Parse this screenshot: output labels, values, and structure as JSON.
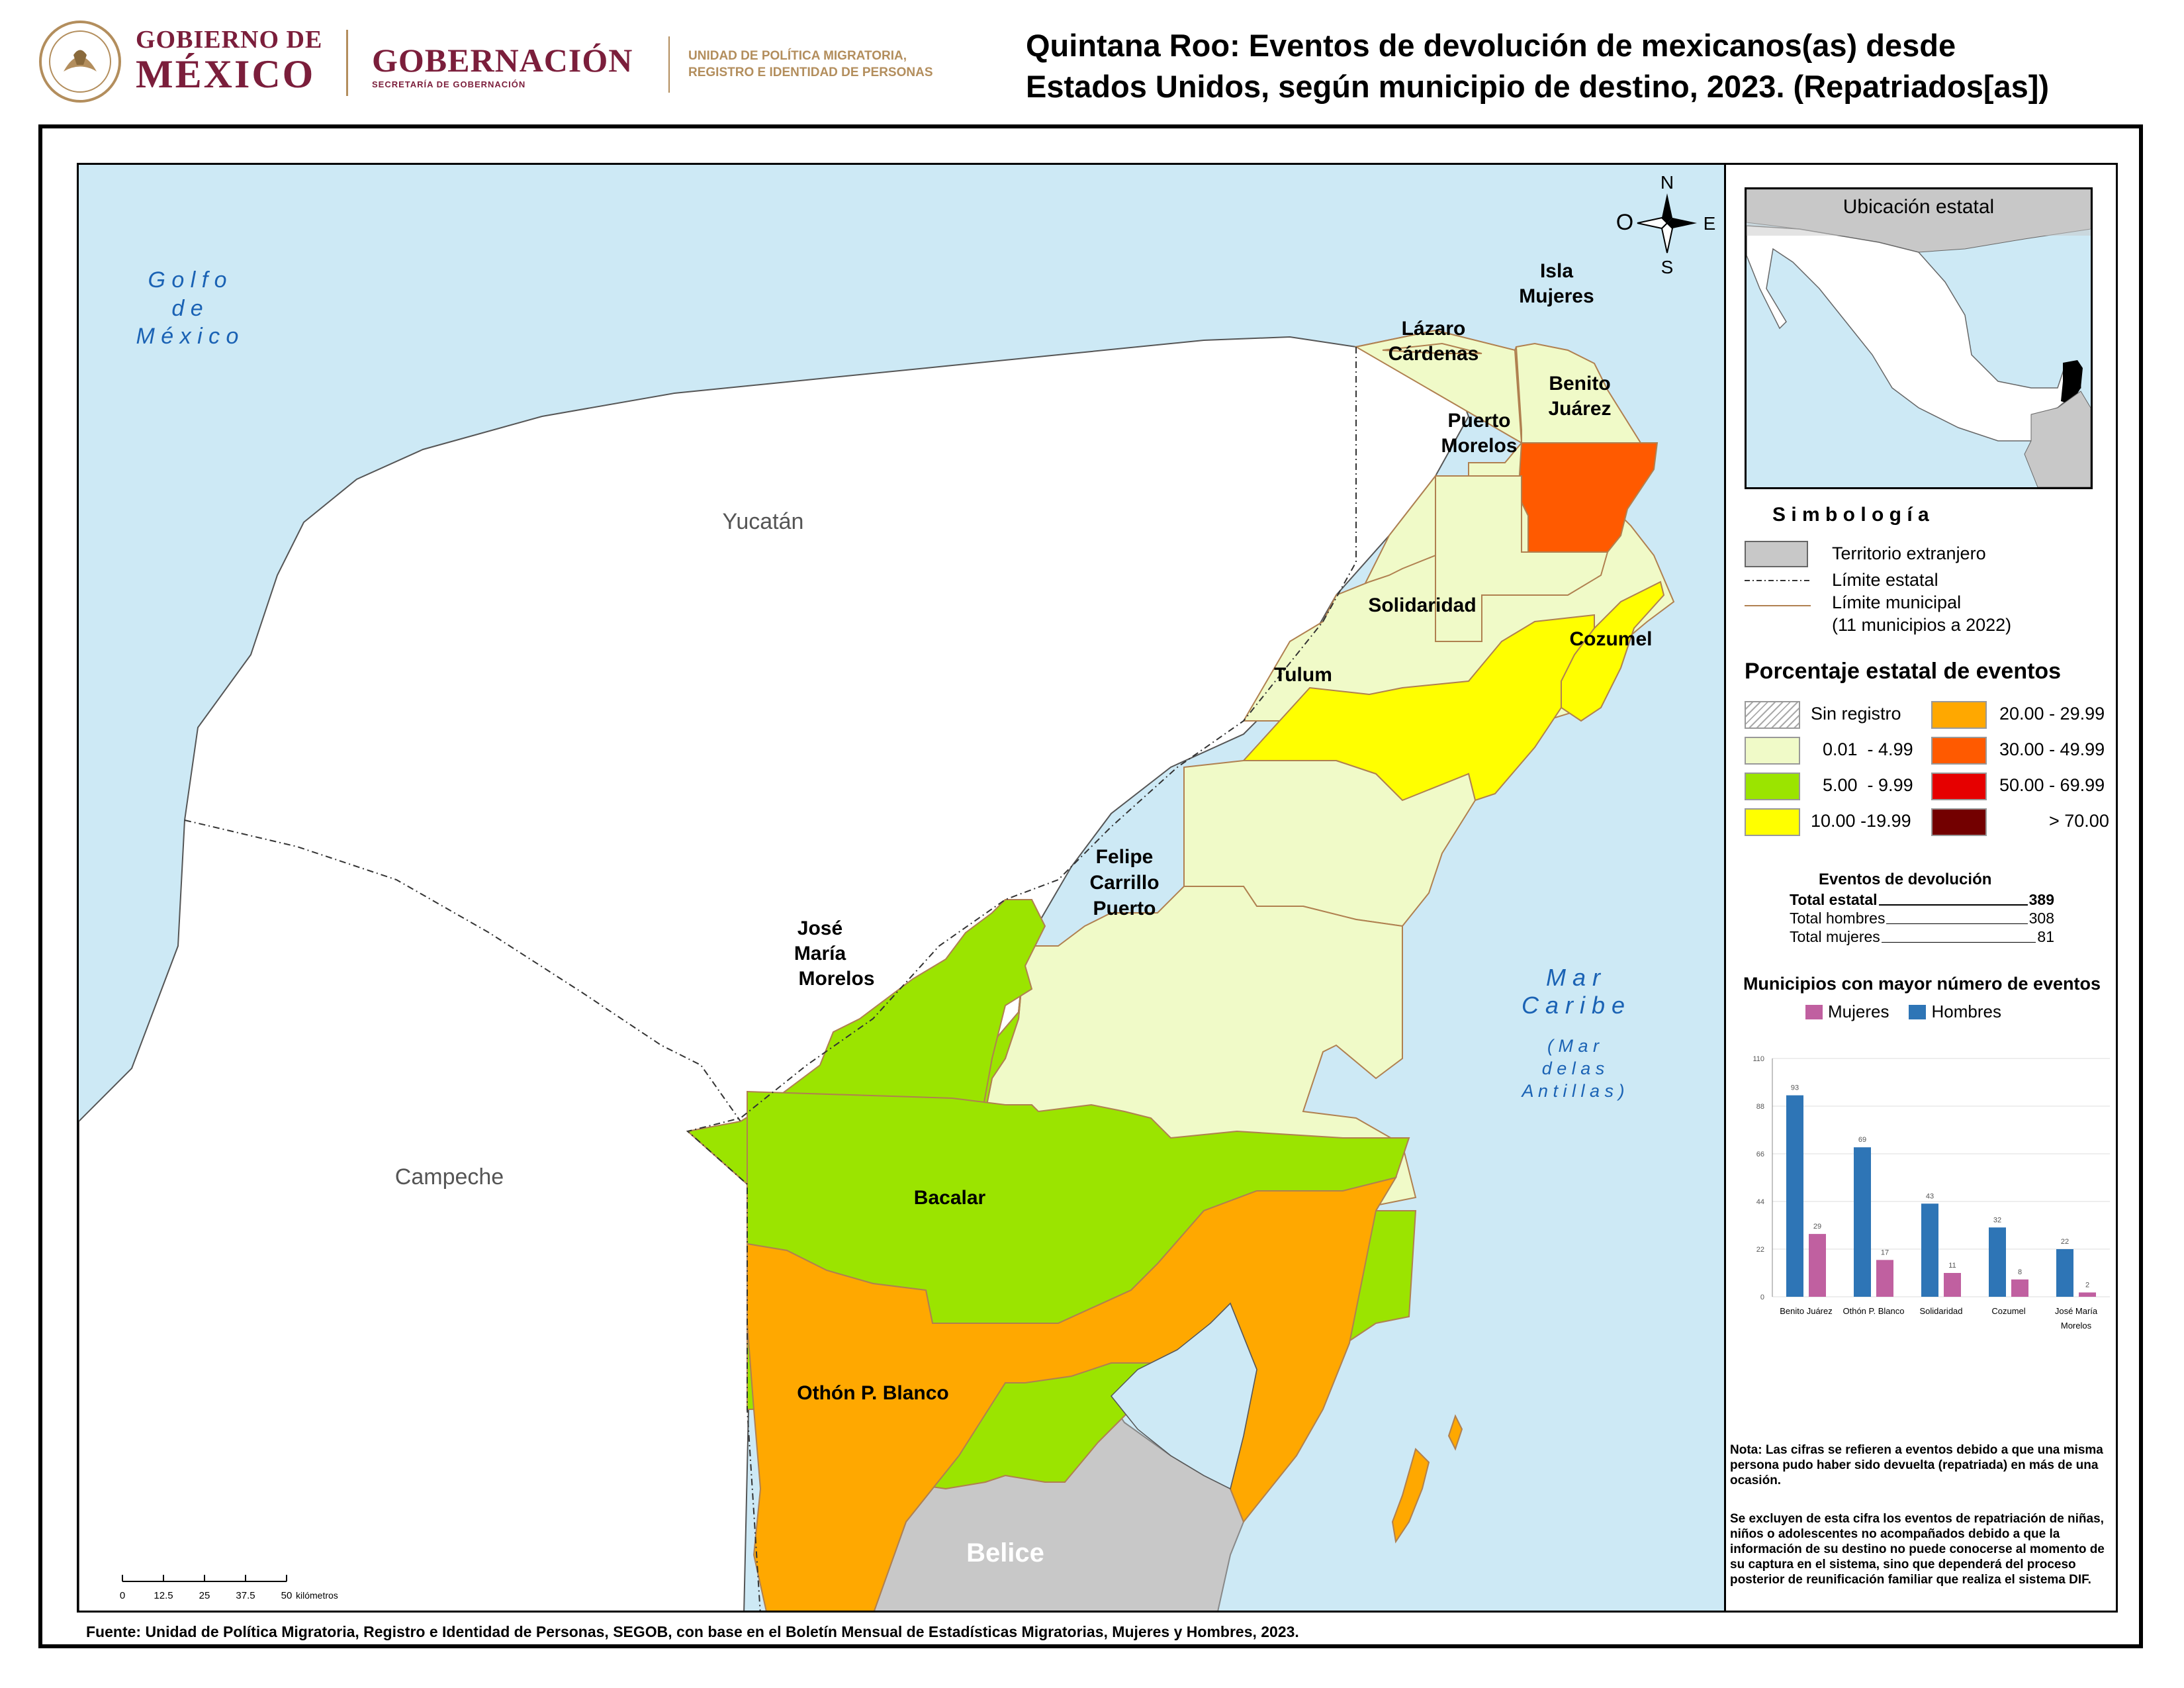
{
  "header": {
    "logo_gobierno_line1": "GOBIERNO DE",
    "logo_gobierno_line2": "MÉXICO",
    "logo_gobernacion": "GOBERNACIÓN",
    "logo_gobernacion_sub": "SECRETARÍA DE GOBERNACIÓN",
    "logo_unidad_line1": "UNIDAD DE POLÍTICA MIGRATORIA,",
    "logo_unidad_line2": "REGISTRO E IDENTIDAD DE PERSONAS",
    "title_line1": "Quintana Roo: Eventos de devolución de mexicanos(as) desde",
    "title_line2": "Estados Unidos, según municipio de destino, 2023. (Repatriados[as])"
  },
  "map": {
    "compass": {
      "n": "N",
      "s": "S",
      "e": "E",
      "w": "O"
    },
    "sea_golfo": [
      "G o l f o",
      "d e",
      "M é x i c o"
    ],
    "sea_caribe": [
      "M a r",
      "C a r i b e"
    ],
    "sea_antillas": [
      "( M a r",
      "d e   l a s",
      "A n t i l l a s )"
    ],
    "states": {
      "yucatan": "Yucatán",
      "campeche": "Campeche",
      "belice": "Belice"
    },
    "municipios": {
      "isla_mujeres": [
        "Isla",
        "Mujeres"
      ],
      "lazaro_cardenas": [
        "Lázaro",
        "Cárdenas"
      ],
      "benito_juarez": [
        "Benito",
        "Juárez"
      ],
      "puerto_morelos": [
        "Puerto",
        "Morelos"
      ],
      "solidaridad": [
        "Solidaridad"
      ],
      "cozumel": [
        "Cozumel"
      ],
      "tulum": [
        "Tulum"
      ],
      "felipe_carrillo_puerto": [
        "Felipe",
        "Carrillo",
        "Puerto"
      ],
      "jose_maria_morelos": [
        "José",
        "María",
        "Morelos"
      ],
      "bacalar": [
        "Bacalar"
      ],
      "othon_p_blanco": [
        "Othón P. Blanco"
      ]
    },
    "scale": {
      "ticks": [
        "0",
        "12.5",
        "25",
        "37.5",
        "50"
      ],
      "unit": "kilómetros"
    },
    "colors": {
      "sea": "#cde9f5",
      "neighbor": "#ffffff",
      "foreign": "#c8c8c8",
      "c1": "#f0fac8",
      "c2": "#9be400",
      "c3": "#ffff00",
      "c4": "#ffa800",
      "c5": "#ff5a00",
      "c6": "#e60000",
      "c7": "#730000"
    }
  },
  "sidebar": {
    "inset_title": "Ubicación estatal",
    "simbologia_title": "S i m b o l o g í a",
    "simbologia": {
      "territorio": "Territorio extranjero",
      "limite_estatal": "Límite estatal",
      "limite_municipal": "Límite municipal",
      "limite_municipal_note": "(11 municipios a 2022)"
    },
    "porcentaje_title": "Porcentaje estatal de eventos",
    "classes": [
      {
        "label": "Sin registro",
        "color": "hatch"
      },
      {
        "label": "20.00 - 29.99",
        "color": "#ffa800"
      },
      {
        "label": "0.01  - 4.99",
        "color": "#f0fac8"
      },
      {
        "label": "30.00 - 49.99",
        "color": "#ff5a00"
      },
      {
        "label": "5.00  - 9.99",
        "color": "#9be400"
      },
      {
        "label": "50.00 - 69.99",
        "color": "#e60000"
      },
      {
        "label": "10.00 -19.99",
        "color": "#ffff00"
      },
      {
        "label": "> 70.00",
        "color": "#730000"
      }
    ],
    "eventos_title": "Eventos de devolución",
    "totals": [
      {
        "label": "Total estatal",
        "value": "389"
      },
      {
        "label": "Total hombres",
        "value": "308"
      },
      {
        "label": "Total mujeres",
        "value": "81"
      }
    ],
    "chart_title": "Municipios con mayor número de eventos",
    "note_p1": "Nota: Las cifras se refieren a eventos debido a que una misma persona pudo haber sido devuelta (repatriada) en más de una ocasión.",
    "note_p2": "Se excluyen de esta cifra los eventos de repatriación de niñas, niños o adolescentes no acompañados debido a que la información de su destino no puede conocerse al momento de su captura en el sistema, sino que dependerá del proceso posterior de reunificación familiar que realiza el sistema DIF."
  },
  "source": "Fuente: Unidad de Política Migratoria, Registro e Identidad de Personas, SEGOB, con base en el Boletín Mensual de Estadísticas Migratorias, Mujeres y Hombres, 2023.",
  "chart_data": {
    "type": "bar",
    "title": "Municipios con mayor número de eventos",
    "categories": [
      "Benito Juárez",
      "Othón P. Blanco",
      "Solidaridad",
      "Cozumel",
      "José María Morelos"
    ],
    "series": [
      {
        "name": "Hombres",
        "color": "#2e75b6",
        "values": [
          93,
          69,
          43,
          32,
          22
        ]
      },
      {
        "name": "Mujeres",
        "color": "#c060a0",
        "values": [
          29,
          17,
          11,
          8,
          2
        ]
      }
    ],
    "yticks": [
      "0",
      "22",
      "44",
      "66",
      "88",
      "110"
    ],
    "ylim": [
      0,
      110
    ],
    "legend": "top"
  }
}
